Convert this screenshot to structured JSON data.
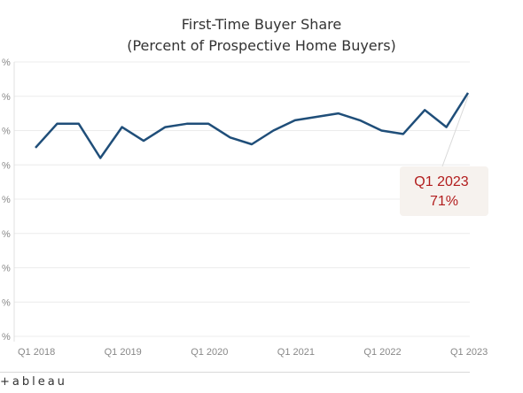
{
  "chart_data": {
    "type": "line",
    "title": "First-Time Buyer Share",
    "subtitle": "(Percent of Prospective Home Buyers)",
    "xlabel": "",
    "ylabel": "",
    "x_tick_labels": [
      "Q1 2018",
      "Q1 2019",
      "Q1 2020",
      "Q1 2021",
      "Q1 2022",
      "Q1 2023"
    ],
    "x": [
      "Q1 2018",
      "Q2 2018",
      "Q3 2018",
      "Q4 2018",
      "Q1 2019",
      "Q2 2019",
      "Q3 2019",
      "Q4 2019",
      "Q1 2020",
      "Q2 2020",
      "Q3 2020",
      "Q4 2020",
      "Q1 2021",
      "Q2 2021",
      "Q3 2021",
      "Q4 2021",
      "Q1 2022",
      "Q2 2022",
      "Q3 2022",
      "Q4 2022",
      "Q1 2023"
    ],
    "series": [
      {
        "name": "",
        "color": "#1f4e79",
        "values": [
          55,
          62,
          62,
          52,
          61,
          57,
          61,
          62,
          62,
          58,
          56,
          60,
          63,
          64,
          65,
          63,
          60,
          59,
          66,
          61,
          71
        ]
      }
    ],
    "ylim": [
      0,
      80
    ],
    "y_ticks": [
      0,
      10,
      20,
      30,
      40,
      50,
      60,
      70,
      80
    ],
    "y_tick_labels": [
      "%",
      "%",
      "%",
      "%",
      "%",
      "%",
      "%",
      "%",
      "%"
    ],
    "grid": true,
    "annotation": {
      "x": "Q1 2023",
      "label_line1": "Q1 2023",
      "label_line2": "71%",
      "color": "#b21d1d",
      "background": "#f6f2ee"
    }
  },
  "footer": {
    "logo_text": "+ableau"
  }
}
